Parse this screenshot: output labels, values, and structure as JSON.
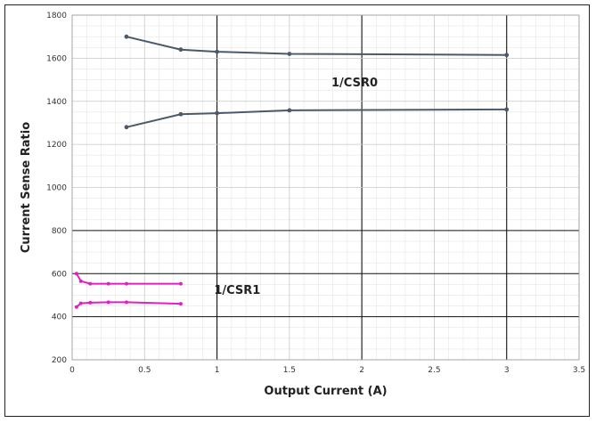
{
  "chart_data": {
    "type": "line",
    "title": "",
    "xlabel": "Output Current (A)",
    "ylabel": "Current Sense Ratio",
    "xlim": [
      0,
      3.5
    ],
    "ylim": [
      200,
      1800
    ],
    "x_ticks": [
      "0",
      "0.5",
      "1",
      "1.5",
      "2",
      "2.5",
      "3",
      "3.5"
    ],
    "y_ticks": [
      "200",
      "400",
      "600",
      "800",
      "1000",
      "1200",
      "1400",
      "1600",
      "1800"
    ],
    "grid": true,
    "legend": "none",
    "series": [
      {
        "label_group": "csr0",
        "color": "#4a5a6a",
        "x": [
          0.375,
          0.75,
          1.0,
          1.5,
          3.0
        ],
        "y": [
          1700,
          1640,
          1630,
          1620,
          1615
        ]
      },
      {
        "label_group": "csr0",
        "color": "#4a5a6a",
        "x": [
          0.375,
          0.75,
          1.0,
          1.5,
          3.0
        ],
        "y": [
          1280,
          1340,
          1345,
          1358,
          1362
        ]
      },
      {
        "label_group": "csr1",
        "color": "#e020c0",
        "x": [
          0.03,
          0.06,
          0.125,
          0.25,
          0.375,
          0.75
        ],
        "y": [
          600,
          565,
          553,
          553,
          553,
          553
        ]
      },
      {
        "label_group": "csr1",
        "color": "#e020c0",
        "x": [
          0.03,
          0.06,
          0.125,
          0.25,
          0.375,
          0.75
        ],
        "y": [
          445,
          462,
          465,
          467,
          467,
          460
        ]
      }
    ],
    "annotations": [
      {
        "text": "1/CSR0",
        "x": 1.79,
        "y": 1470
      },
      {
        "text": "1/CSR1",
        "x": 0.98,
        "y": 505
      }
    ]
  }
}
